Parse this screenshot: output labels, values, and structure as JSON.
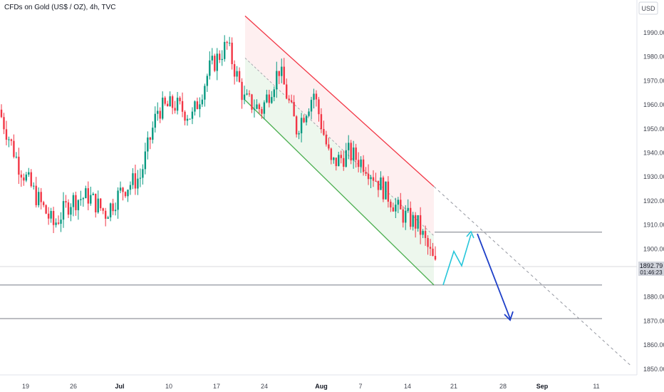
{
  "header": {
    "title": "CFDs on Gold (US$ / OZ), 4h, TVC"
  },
  "axis": {
    "currency": "USD"
  },
  "last_price": {
    "value": "1892.79",
    "countdown": "01:46:23"
  },
  "colors": {
    "up": "#089981",
    "down": "#f23645",
    "channel_upper": "#f23645",
    "channel_lower": "#4caf50",
    "path_up": "#26c6da",
    "path_down": "#1e3fc8",
    "levels": "#787b86"
  },
  "chart_data": {
    "type": "candlestick",
    "title": "CFDs on Gold (US$ / OZ), 4h, TVC",
    "xlabel": "",
    "ylabel": "",
    "ylim": [
      1847,
      1999
    ],
    "y_ticks": [
      "1990.00",
      "1980.00",
      "1970.00",
      "1960.00",
      "1950.00",
      "1940.00",
      "1930.00",
      "1920.00",
      "1910.00",
      "1900.00",
      "1890.00",
      "1880.00",
      "1870.00",
      "1860.00",
      "1850.00"
    ],
    "x_ticks": [
      "19",
      "26",
      "Jul",
      "10",
      "17",
      "24",
      "Aug",
      "7",
      "14",
      "21",
      "28",
      "Sep",
      "11"
    ],
    "anchors": [
      {
        "date": "19",
        "close": 1955
      },
      {
        "date": "21",
        "close": 1935
      },
      {
        "date": "26",
        "close": 1922
      },
      {
        "date": "28",
        "close": 1910
      },
      {
        "date": "Jul",
        "close": 1920
      },
      {
        "date": "3",
        "close": 1922
      },
      {
        "date": "5",
        "close": 1915
      },
      {
        "date": "7",
        "close": 1925
      },
      {
        "date": "10",
        "close": 1930
      },
      {
        "date": "12",
        "close": 1958
      },
      {
        "date": "14",
        "close": 1960
      },
      {
        "date": "17",
        "close": 1955
      },
      {
        "date": "19",
        "close": 1975
      },
      {
        "date": "20",
        "close": 1985
      },
      {
        "date": "24",
        "close": 1962
      },
      {
        "date": "26",
        "close": 1958
      },
      {
        "date": "27",
        "close": 1975
      },
      {
        "date": "28",
        "close": 1950
      },
      {
        "date": "Aug",
        "close": 1965
      },
      {
        "date": "2",
        "close": 1935
      },
      {
        "date": "4",
        "close": 1940
      },
      {
        "date": "7",
        "close": 1935
      },
      {
        "date": "9",
        "close": 1925
      },
      {
        "date": "11",
        "close": 1915
      },
      {
        "date": "14",
        "close": 1910
      },
      {
        "date": "16",
        "close": 1893
      }
    ],
    "horizontal_levels": [
      1907,
      1885,
      1871
    ],
    "channel": {
      "upper": [
        {
          "date": "20",
          "value": 1997
        },
        {
          "date": "17 Aug",
          "value": 1926
        }
      ],
      "lower": [
        {
          "date": "20",
          "value": 1962
        },
        {
          "date": "17 Aug",
          "value": 1885
        }
      ]
    },
    "trendline_extension": [
      {
        "date": "17 Aug",
        "value": 1926
      },
      {
        "date": "10 Sep",
        "value": 1851
      }
    ],
    "projection_path": [
      {
        "date": "17 Aug",
        "value": 1885
      },
      {
        "date": "19 Aug",
        "value": 1899
      },
      {
        "date": "21 Aug",
        "value": 1893
      },
      {
        "date": "23 Aug",
        "value": 1906
      },
      {
        "date": "27 Aug",
        "value": 1871
      }
    ]
  }
}
